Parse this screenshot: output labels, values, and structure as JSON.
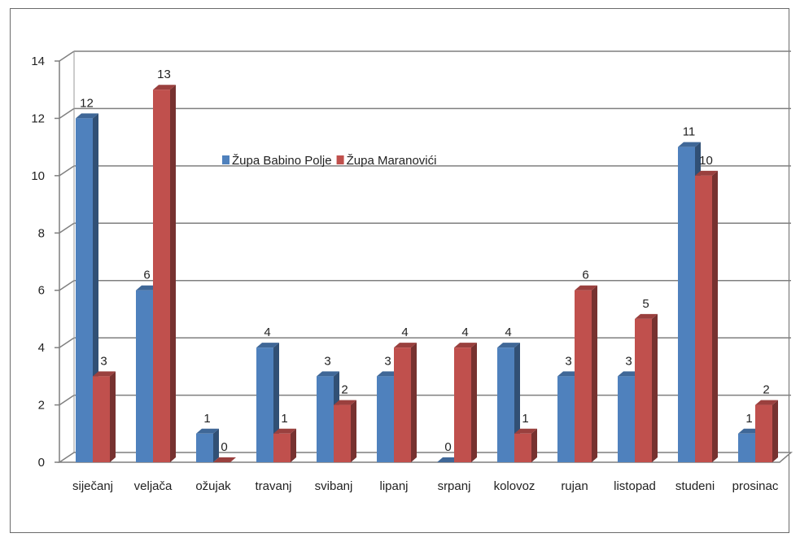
{
  "chart_data": {
    "type": "bar",
    "categories": [
      "siječanj",
      "veljača",
      "ožujak",
      "travanj",
      "svibanj",
      "lipanj",
      "srpanj",
      "kolovoz",
      "rujan",
      "listopad",
      "studeni",
      "prosinac"
    ],
    "series": [
      {
        "name": "Župa Babino Polje",
        "values": [
          12,
          6,
          1,
          4,
          3,
          3,
          0,
          4,
          3,
          3,
          11,
          1
        ],
        "color": "#4f81bd"
      },
      {
        "name": "Župa Maranovići",
        "values": [
          3,
          13,
          0,
          1,
          2,
          4,
          4,
          1,
          6,
          5,
          10,
          2
        ],
        "color": "#c0504d"
      }
    ],
    "y_ticks": [
      "0",
      "2",
      "4",
      "6",
      "8",
      "10",
      "12",
      "14"
    ],
    "ylim": [
      0,
      14
    ],
    "grid": true,
    "legend_position": "top-center",
    "data_labels": true,
    "style": "3d-clustered-column"
  }
}
